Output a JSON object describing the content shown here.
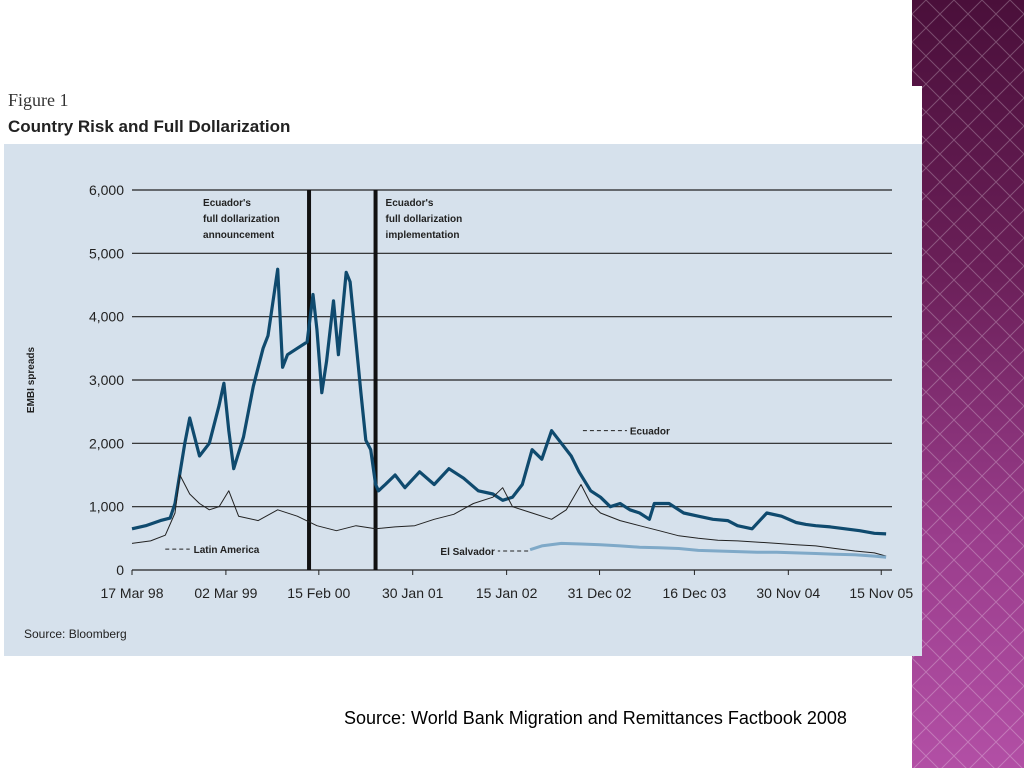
{
  "figure": {
    "label": "Figure 1",
    "title": "Country Risk and Full Dollarization",
    "source_inner": "Source: Bloomberg"
  },
  "footer": {
    "source": "Source: World Bank Migration and Remittances Factbook 2008"
  },
  "colors": {
    "panel_bg": "#d6e1ec",
    "ecuador": "#0f4a6e",
    "latin_america": "#222222",
    "el_salvador": "#7fa9c8",
    "side_panel": "#6a1f58"
  },
  "chart_data": {
    "type": "line",
    "title": "Country Risk and Full Dollarization",
    "xlabel": "",
    "ylabel": "EMBI spreads",
    "ylim": [
      0,
      6000
    ],
    "yticks": [
      0,
      1000,
      2000,
      3000,
      4000,
      5000,
      6000
    ],
    "ytick_labels": [
      "0",
      "1,000",
      "2,000",
      "3,000",
      "4,000",
      "5,000",
      "6,000"
    ],
    "xlim": [
      1998.21,
      2005.98
    ],
    "xticks": [
      1998.21,
      1999.17,
      2000.12,
      2001.08,
      2002.04,
      2002.99,
      2003.96,
      2004.92,
      2005.87
    ],
    "xtick_labels": [
      "17 Mar 98",
      "02 Mar 99",
      "15 Feb 00",
      "30 Jan 01",
      "15 Jan 02",
      "31 Dec 02",
      "16 Dec 03",
      "30 Nov 04",
      "15 Nov 05"
    ],
    "grid": true,
    "events": [
      {
        "x": 2000.02,
        "label": [
          "Ecuador's",
          "full dollarization",
          "announcement"
        ]
      },
      {
        "x": 2000.7,
        "label": [
          "Ecuador's",
          "full dollarization",
          "implementation"
        ]
      }
    ],
    "series": [
      {
        "name": "Ecuador",
        "x": [
          1998.21,
          1998.35,
          1998.5,
          1998.6,
          1998.65,
          1998.75,
          1998.8,
          1998.9,
          1999.0,
          1999.1,
          1999.15,
          1999.2,
          1999.25,
          1999.35,
          1999.45,
          1999.55,
          1999.6,
          1999.7,
          1999.75,
          1999.8,
          1999.9,
          2000.0,
          2000.06,
          2000.1,
          2000.15,
          2000.2,
          2000.27,
          2000.32,
          2000.4,
          2000.44,
          2000.5,
          2000.55,
          2000.6,
          2000.65,
          2000.7,
          2000.73,
          2000.8,
          2000.9,
          2001.0,
          2001.15,
          2001.3,
          2001.45,
          2001.6,
          2001.75,
          2001.9,
          2002.0,
          2002.1,
          2002.2,
          2002.3,
          2002.4,
          2002.5,
          2002.6,
          2002.7,
          2002.78,
          2002.9,
          2003.0,
          2003.1,
          2003.2,
          2003.3,
          2003.4,
          2003.5,
          2003.55,
          2003.7,
          2003.85,
          2004.0,
          2004.15,
          2004.3,
          2004.4,
          2004.55,
          2004.7,
          2004.85,
          2005.0,
          2005.1,
          2005.2,
          2005.35,
          2005.5,
          2005.65,
          2005.8,
          2005.92
        ],
        "values": [
          650,
          700,
          780,
          820,
          1050,
          2000,
          2400,
          1800,
          2000,
          2600,
          2950,
          2200,
          1600,
          2100,
          2900,
          3500,
          3700,
          4750,
          3200,
          3400,
          3500,
          3600,
          4350,
          3800,
          2800,
          3300,
          4250,
          3400,
          4700,
          4550,
          3600,
          2800,
          2050,
          1900,
          1350,
          1250,
          1350,
          1500,
          1300,
          1550,
          1350,
          1600,
          1450,
          1250,
          1200,
          1100,
          1150,
          1350,
          1900,
          1750,
          2200,
          2000,
          1800,
          1550,
          1250,
          1150,
          1000,
          1050,
          950,
          900,
          800,
          1050,
          1050,
          900,
          850,
          800,
          780,
          700,
          650,
          900,
          850,
          750,
          720,
          700,
          680,
          650,
          620,
          580,
          570
        ]
      },
      {
        "name": "Latin America",
        "x": [
          1998.21,
          1998.4,
          1998.55,
          1998.65,
          1998.7,
          1998.8,
          1998.9,
          1999.0,
          1999.1,
          1999.2,
          1999.3,
          1999.5,
          1999.7,
          1999.9,
          2000.1,
          2000.3,
          2000.5,
          2000.7,
          2000.9,
          2001.1,
          2001.3,
          2001.5,
          2001.7,
          2001.9,
          2002.0,
          2002.1,
          2002.3,
          2002.5,
          2002.65,
          2002.8,
          2002.9,
          2003.0,
          2003.2,
          2003.4,
          2003.6,
          2003.8,
          2004.0,
          2004.2,
          2004.4,
          2004.6,
          2004.8,
          2005.0,
          2005.2,
          2005.4,
          2005.6,
          2005.8,
          2005.92
        ],
        "values": [
          420,
          460,
          550,
          900,
          1500,
          1200,
          1050,
          950,
          1000,
          1250,
          850,
          780,
          950,
          850,
          700,
          620,
          700,
          650,
          680,
          700,
          800,
          880,
          1050,
          1150,
          1300,
          1000,
          900,
          800,
          950,
          1350,
          1050,
          900,
          780,
          700,
          620,
          540,
          500,
          470,
          460,
          440,
          420,
          400,
          380,
          340,
          300,
          270,
          220
        ]
      },
      {
        "name": "El Salvador",
        "x": [
          2002.28,
          2002.4,
          2002.6,
          2002.8,
          2003.0,
          2003.2,
          2003.4,
          2003.6,
          2003.8,
          2004.0,
          2004.2,
          2004.4,
          2004.6,
          2004.8,
          2005.0,
          2005.2,
          2005.4,
          2005.6,
          2005.8,
          2005.92
        ],
        "values": [
          320,
          380,
          420,
          410,
          400,
          380,
          360,
          350,
          340,
          310,
          300,
          290,
          280,
          280,
          270,
          260,
          250,
          240,
          220,
          200
        ]
      }
    ]
  }
}
